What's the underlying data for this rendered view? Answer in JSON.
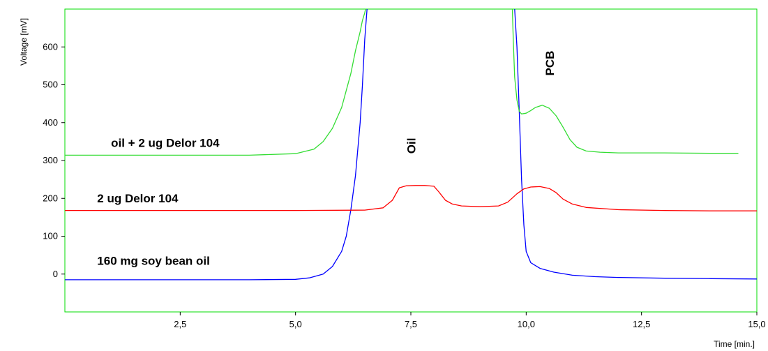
{
  "chart_data": {
    "type": "line",
    "xlabel": "Time [min.]",
    "ylabel": "Voltage [mV]",
    "xlim": [
      0,
      15
    ],
    "ylim": [
      -100,
      700
    ],
    "x_ticks": [
      2.5,
      5.0,
      7.5,
      10.0,
      12.5,
      15.0
    ],
    "x_tick_labels": [
      "2,5",
      "5,0",
      "7,5",
      "10,0",
      "12,5",
      "15,0"
    ],
    "y_ticks": [
      0,
      100,
      200,
      300,
      400,
      500,
      600
    ],
    "y_tick_labels": [
      "0",
      "100",
      "200",
      "300",
      "400",
      "500",
      "600"
    ],
    "grid": false,
    "frame_color": "#00dd00",
    "series": [
      {
        "name": "160 mg soy bean oil",
        "color": "#0000ff",
        "x": [
          0,
          2,
          4,
          5.0,
          5.3,
          5.6,
          5.8,
          6.0,
          6.1,
          6.2,
          6.3,
          6.4,
          6.45,
          6.5,
          6.55,
          6.6,
          9.7,
          9.75,
          9.8,
          9.85,
          9.9,
          9.95,
          10.0,
          10.1,
          10.3,
          10.6,
          11.0,
          11.5,
          12.0,
          13.0,
          14.0,
          15.0
        ],
        "y": [
          -15,
          -15,
          -15,
          -14,
          -10,
          0,
          20,
          60,
          100,
          170,
          260,
          400,
          500,
          620,
          700,
          720,
          720,
          700,
          600,
          430,
          250,
          130,
          60,
          30,
          15,
          5,
          -3,
          -7,
          -9,
          -11,
          -12,
          -13
        ]
      },
      {
        "name": "2 ug Delor 104",
        "color": "#ff0000",
        "x": [
          0,
          5.0,
          6.5,
          6.9,
          7.1,
          7.25,
          7.4,
          7.6,
          7.8,
          8.0,
          8.1,
          8.25,
          8.4,
          8.6,
          9.0,
          9.4,
          9.6,
          9.8,
          9.95,
          10.1,
          10.3,
          10.5,
          10.65,
          10.8,
          11.0,
          11.3,
          12.0,
          13.0,
          14.0,
          15.0
        ],
        "y": [
          168,
          168,
          169,
          175,
          195,
          228,
          233,
          234,
          234,
          232,
          218,
          195,
          185,
          180,
          178,
          180,
          190,
          212,
          225,
          230,
          231,
          226,
          215,
          198,
          185,
          176,
          170,
          168,
          167,
          167
        ]
      },
      {
        "name": "oil + 2 ug Delor 104",
        "color": "#33dd33",
        "x": [
          0,
          2,
          4,
          5.0,
          5.4,
          5.6,
          5.8,
          6.0,
          6.2,
          6.3,
          6.4,
          6.45,
          6.5,
          6.55,
          9.65,
          9.7,
          9.72,
          9.75,
          9.8,
          9.85,
          9.9,
          10.0,
          10.1,
          10.2,
          10.35,
          10.5,
          10.65,
          10.8,
          10.95,
          11.1,
          11.3,
          11.6,
          12.0,
          13.0,
          14.0,
          14.6
        ],
        "y": [
          314,
          314,
          314,
          318,
          330,
          350,
          385,
          440,
          530,
          590,
          640,
          670,
          690,
          720,
          720,
          700,
          620,
          520,
          460,
          430,
          423,
          425,
          432,
          440,
          446,
          438,
          418,
          388,
          355,
          335,
          325,
          322,
          320,
          320,
          319,
          319
        ]
      }
    ],
    "annotations": [
      {
        "text": "oil + 2 ug Delor 104",
        "x": 1.0,
        "y": 336,
        "rotate": 0
      },
      {
        "text": "2 ug Delor 104",
        "x": 0.7,
        "y": 189,
        "rotate": 0
      },
      {
        "text": "160 mg soy bean oil",
        "x": 0.7,
        "y": 24,
        "rotate": 0
      },
      {
        "text": "Oil",
        "x": 7.6,
        "y": 318,
        "rotate": -90
      },
      {
        "text": "PCB",
        "x": 10.6,
        "y": 524,
        "rotate": -90
      }
    ]
  }
}
